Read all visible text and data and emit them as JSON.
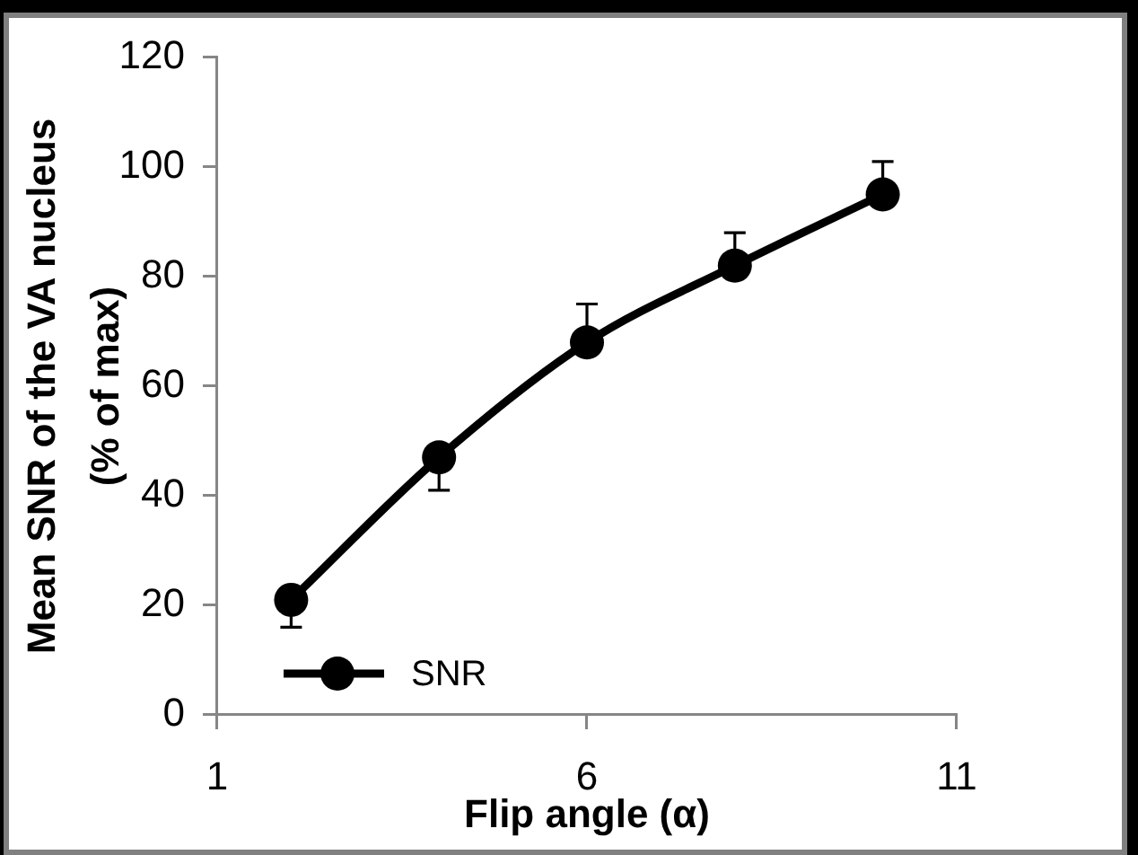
{
  "chart_data": {
    "type": "line",
    "xlabel": "Flip angle (α)",
    "ylabel": "Mean SNR of the VA nucleus\n(% of max)",
    "x": [
      2,
      4,
      6,
      8,
      10
    ],
    "series": [
      {
        "name": "SNR",
        "color": "#000000",
        "values": [
          21,
          47,
          68,
          82,
          95
        ],
        "errors": [
          [
            16,
            21
          ],
          [
            41,
            47
          ],
          [
            68,
            75
          ],
          [
            82,
            88
          ],
          [
            95,
            101
          ]
        ]
      }
    ],
    "xlim": [
      1,
      11
    ],
    "xticks": [
      1,
      6,
      11
    ],
    "ylim": [
      0,
      120
    ],
    "yticks": [
      0,
      20,
      40,
      60,
      80,
      100,
      120
    ],
    "grid": false,
    "legend": "bottom left",
    "marker": "circle",
    "line_style": "solid"
  }
}
